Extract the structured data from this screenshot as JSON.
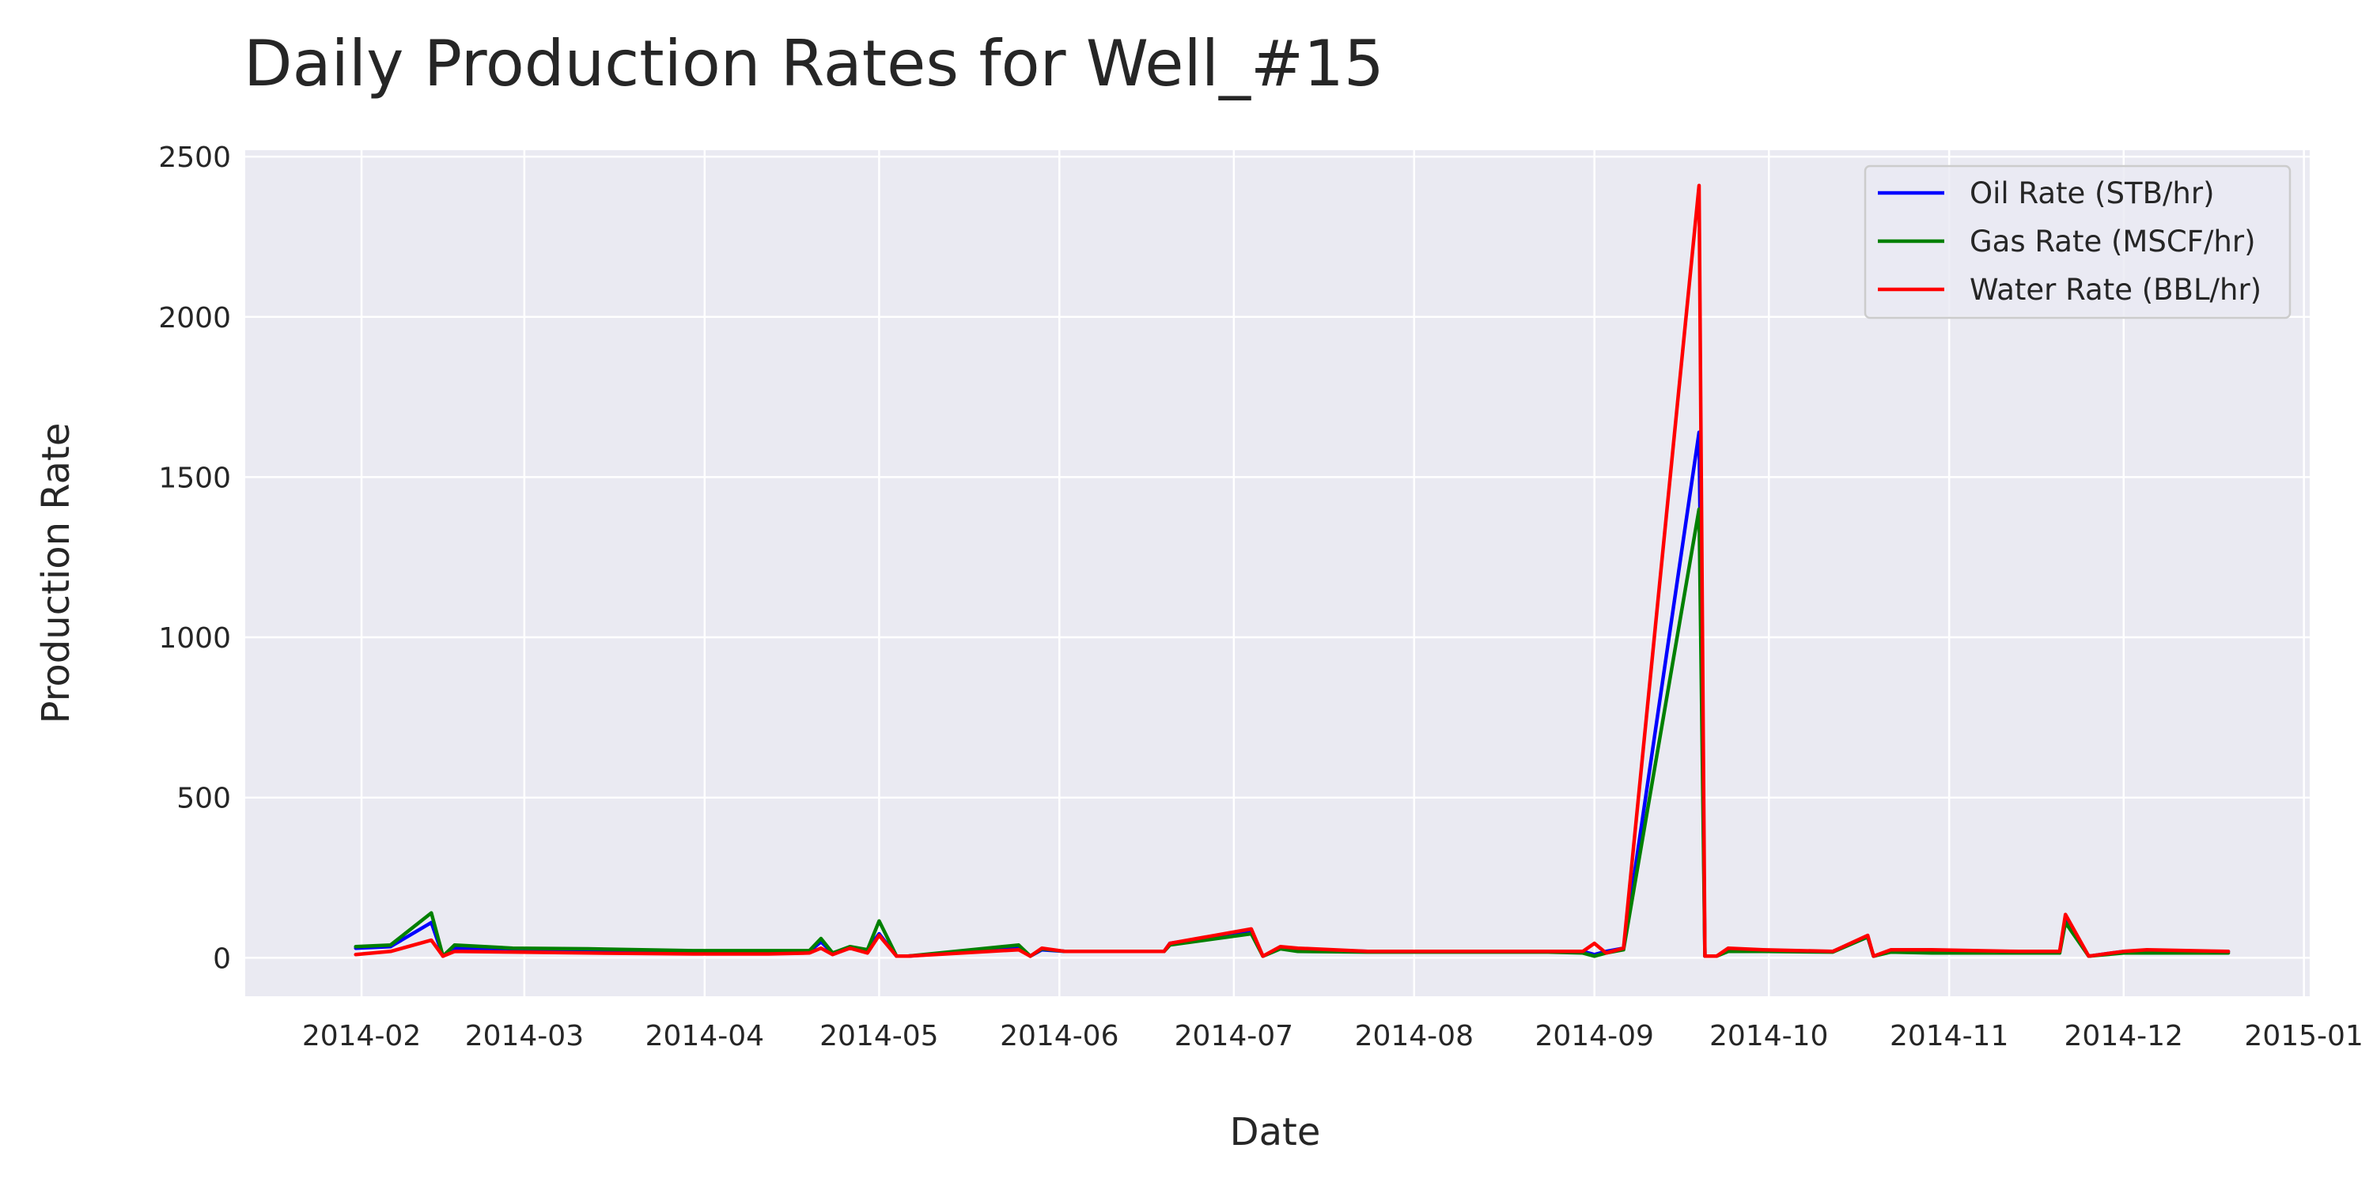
{
  "colors": {
    "background": "#ffffff",
    "plot_background": "#eaeaf2",
    "grid": "#ffffff",
    "text": "#262626",
    "oil": "#0000ff",
    "gas": "#008000",
    "water": "#ff0000"
  },
  "chart_data": {
    "type": "line",
    "title": "Daily Production Rates for Well_#15",
    "xlabel": "Date",
    "ylabel": "Production Rate",
    "xlim": [
      "2014-01-12",
      "2015-01-02"
    ],
    "ylim": [
      -120,
      2520
    ],
    "x_ticks": [
      "2014-02",
      "2014-03",
      "2014-04",
      "2014-05",
      "2014-06",
      "2014-07",
      "2014-08",
      "2014-09",
      "2014-10",
      "2014-11",
      "2014-12",
      "2015-01"
    ],
    "y_ticks": [
      0,
      500,
      1000,
      1500,
      2000,
      2500
    ],
    "grid": true,
    "legend_position": "top-right",
    "x": [
      "2014-01-31",
      "2014-02-06",
      "2014-02-13",
      "2014-02-15",
      "2014-02-17",
      "2014-02-27",
      "2014-03-12",
      "2014-03-30",
      "2014-04-12",
      "2014-04-19",
      "2014-04-21",
      "2014-04-23",
      "2014-04-26",
      "2014-04-29",
      "2014-05-01",
      "2014-05-04",
      "2014-05-06",
      "2014-05-25",
      "2014-05-27",
      "2014-05-29",
      "2014-06-02",
      "2014-06-19",
      "2014-06-20",
      "2014-07-04",
      "2014-07-06",
      "2014-07-09",
      "2014-07-12",
      "2014-07-24",
      "2014-08-24",
      "2014-08-30",
      "2014-09-01",
      "2014-09-03",
      "2014-09-06",
      "2014-09-19",
      "2014-09-20",
      "2014-09-22",
      "2014-09-24",
      "2014-09-30",
      "2014-10-12",
      "2014-10-18",
      "2014-10-19",
      "2014-10-22",
      "2014-10-29",
      "2014-11-13",
      "2014-11-20",
      "2014-11-21",
      "2014-11-25",
      "2014-12-01",
      "2014-12-05",
      "2014-12-19"
    ],
    "series": [
      {
        "name": "Oil Rate (STB/hr)",
        "color": "#0000ff",
        "values": [
          30,
          35,
          110,
          5,
          30,
          25,
          25,
          20,
          20,
          20,
          50,
          15,
          30,
          25,
          75,
          5,
          5,
          30,
          5,
          25,
          20,
          20,
          45,
          85,
          5,
          30,
          25,
          20,
          20,
          20,
          10,
          20,
          30,
          1640,
          5,
          5,
          25,
          20,
          20,
          65,
          5,
          20,
          20,
          20,
          20,
          120,
          5,
          20,
          20,
          20
        ]
      },
      {
        "name": "Gas Rate (MSCF/hr)",
        "color": "#008000",
        "values": [
          35,
          40,
          140,
          5,
          40,
          30,
          28,
          22,
          22,
          22,
          60,
          15,
          35,
          25,
          115,
          5,
          5,
          40,
          5,
          28,
          20,
          20,
          40,
          75,
          5,
          28,
          20,
          18,
          18,
          15,
          5,
          15,
          25,
          1400,
          5,
          5,
          20,
          20,
          18,
          65,
          5,
          18,
          15,
          15,
          15,
          110,
          5,
          15,
          15,
          15
        ]
      },
      {
        "name": "Water Rate (BBL/hr)",
        "color": "#ff0000",
        "values": [
          10,
          20,
          55,
          5,
          20,
          18,
          15,
          12,
          12,
          15,
          30,
          10,
          30,
          15,
          70,
          5,
          5,
          25,
          5,
          30,
          20,
          20,
          45,
          90,
          5,
          35,
          30,
          20,
          20,
          20,
          45,
          15,
          30,
          2410,
          5,
          5,
          30,
          25,
          20,
          70,
          5,
          25,
          25,
          20,
          20,
          135,
          5,
          20,
          25,
          20
        ]
      }
    ]
  }
}
